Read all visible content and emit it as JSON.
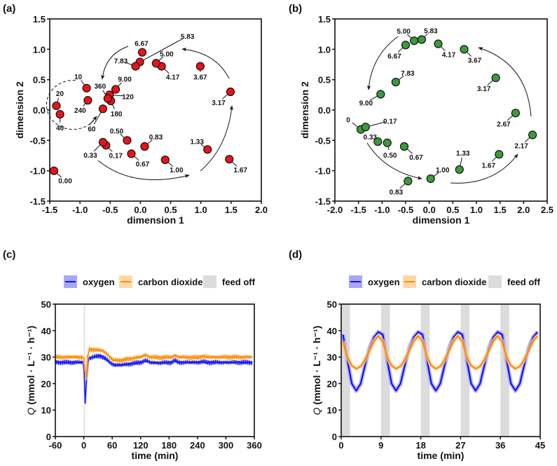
{
  "chart_data": [
    {
      "panel": "(a)",
      "type": "scatter",
      "xlabel": "dimension 1",
      "ylabel": "dimension 2",
      "xlim": [
        -1.5,
        2.0
      ],
      "ylim": [
        -1.5,
        1.5
      ],
      "xticks": [
        "-1.5",
        "-1.0",
        "-0.5",
        "0.0",
        "0.5",
        "1.0",
        "1.5",
        "2.0"
      ],
      "yticks": [
        "-1.5",
        "-1.0",
        "-0.5",
        "0.0",
        "0.5",
        "1.0",
        "1.5"
      ],
      "color": "#e8141c",
      "points": [
        {
          "label": "0.00",
          "x": -1.43,
          "y": -1.0
        },
        {
          "label": "0.17",
          "x": -0.57,
          "y": -0.58
        },
        {
          "label": "0.33",
          "x": -0.62,
          "y": -0.53
        },
        {
          "label": "0.50",
          "x": -0.22,
          "y": -0.5
        },
        {
          "label": "0.67",
          "x": -0.15,
          "y": -0.72
        },
        {
          "label": "0.83",
          "x": 0.07,
          "y": -0.6
        },
        {
          "label": "1.00",
          "x": 0.41,
          "y": -0.82
        },
        {
          "label": "1.33",
          "x": 1.11,
          "y": -0.65
        },
        {
          "label": "1.67",
          "x": 1.47,
          "y": -0.81
        },
        {
          "label": "3.17",
          "x": 1.49,
          "y": 0.3
        },
        {
          "label": "3.67",
          "x": 0.99,
          "y": 0.72
        },
        {
          "label": "4.17",
          "x": 0.35,
          "y": 0.72
        },
        {
          "label": "5.00",
          "x": 0.26,
          "y": 0.77
        },
        {
          "label": "5.83",
          "x": -0.01,
          "y": 0.79
        },
        {
          "label": "6.67",
          "x": 0.03,
          "y": 0.95
        },
        {
          "label": "7.83",
          "x": -0.08,
          "y": 0.72
        },
        {
          "label": "9.00",
          "x": -0.41,
          "y": 0.34
        },
        {
          "label": "10",
          "x": -0.89,
          "y": 0.36
        },
        {
          "label": "20",
          "x": -1.39,
          "y": 0.07
        },
        {
          "label": "40",
          "x": -1.33,
          "y": -0.07
        },
        {
          "label": "60",
          "x": -0.62,
          "y": 0.02
        },
        {
          "label": "120",
          "x": -0.51,
          "y": 0.25
        },
        {
          "label": "180",
          "x": -0.49,
          "y": 0.15
        },
        {
          "label": "240",
          "x": -0.87,
          "y": 0.16
        },
        {
          "label": "360",
          "x": -0.54,
          "y": 0.19
        }
      ]
    },
    {
      "panel": "(b)",
      "type": "scatter",
      "xlabel": "dimension 1",
      "ylabel": "dimension 2",
      "xlim": [
        -2.0,
        2.5
      ],
      "ylim": [
        -1.5,
        1.5
      ],
      "xticks": [
        "-2.0",
        "-1.5",
        "-1.0",
        "-0.5",
        "0.0",
        "0.5",
        "1.0",
        "1.5",
        "2.0",
        "2.5"
      ],
      "yticks": [
        "-1.5",
        "-1.0",
        "-0.5",
        "0.0",
        "0.5",
        "1.0",
        "1.5"
      ],
      "color": "#3c9a3c",
      "points": [
        {
          "label": "0",
          "x": -1.45,
          "y": -0.32
        },
        {
          "label": "0.17",
          "x": -1.35,
          "y": -0.28
        },
        {
          "label": "0.33",
          "x": -1.09,
          "y": -0.52
        },
        {
          "label": "0.50",
          "x": -0.89,
          "y": -0.54
        },
        {
          "label": "0.67",
          "x": -0.53,
          "y": -0.6
        },
        {
          "label": "0.83",
          "x": -0.45,
          "y": -1.17
        },
        {
          "label": "1.00",
          "x": 0.03,
          "y": -1.13
        },
        {
          "label": "1.33",
          "x": 0.64,
          "y": -0.98
        },
        {
          "label": "1.67",
          "x": 1.48,
          "y": -0.73
        },
        {
          "label": "2.17",
          "x": 2.19,
          "y": -0.41
        },
        {
          "label": "2.67",
          "x": 1.83,
          "y": -0.05
        },
        {
          "label": "3.17",
          "x": 1.41,
          "y": 0.53
        },
        {
          "label": "3.67",
          "x": 0.74,
          "y": 1.0
        },
        {
          "label": "4.17",
          "x": 0.19,
          "y": 1.09
        },
        {
          "label": "5.00",
          "x": -0.32,
          "y": 1.14
        },
        {
          "label": "5.83",
          "x": -0.16,
          "y": 1.16
        },
        {
          "label": "6.67",
          "x": -0.5,
          "y": 1.07
        },
        {
          "label": "7.83",
          "x": -0.71,
          "y": 0.46
        },
        {
          "label": "9.00",
          "x": -1.03,
          "y": 0.26
        }
      ]
    },
    {
      "panel": "(c)",
      "type": "line",
      "xlabel": "time (min)",
      "ylabel_q": "Q",
      "ylabel_units": "(mmol · L⁻¹ · h⁻¹)",
      "xlim": [
        -60,
        360
      ],
      "ylim": [
        0,
        50
      ],
      "xticks": [
        "-60",
        "0",
        "60",
        "120",
        "180",
        "240",
        "300",
        "360"
      ],
      "yticks": [
        "0",
        "10",
        "20",
        "30",
        "40",
        "50"
      ],
      "legend": [
        "oxygen",
        "carbon dioxide",
        "feed off"
      ],
      "feed_off": [
        [
          0,
          1.5
        ]
      ],
      "series": [
        {
          "name": "oxygen",
          "color": "#1414f0",
          "band": "#9a9af5",
          "x": [
            -60,
            -1,
            1,
            3,
            6,
            10,
            20,
            35,
            45,
            55,
            65,
            80,
            100,
            120,
            130,
            140,
            160,
            185,
            192,
            200,
            240,
            250,
            260,
            300,
            355
          ],
          "y": [
            28,
            28,
            24,
            13,
            22,
            29.5,
            30,
            30.5,
            29.5,
            28,
            27,
            27,
            27.5,
            28,
            28.7,
            28,
            27.8,
            28,
            28.7,
            28,
            28,
            28.3,
            28,
            28,
            28
          ]
        },
        {
          "name": "carbon dioxide",
          "color": "#ff8c00",
          "band": "#ffd29a",
          "x": [
            -60,
            -1,
            2,
            5,
            8,
            12,
            20,
            40,
            50,
            62,
            80,
            100,
            120,
            130,
            140,
            160,
            185,
            192,
            200,
            240,
            250,
            260,
            300,
            355
          ],
          "y": [
            30,
            30,
            27,
            22,
            30,
            33,
            32.8,
            32.5,
            31,
            28.8,
            28.8,
            29.5,
            30,
            30.8,
            30,
            29.8,
            30,
            30.6,
            30,
            29.8,
            30.3,
            30,
            30,
            30
          ]
        }
      ]
    },
    {
      "panel": "(d)",
      "type": "line",
      "xlabel": "time (min)",
      "ylabel_q": "Q",
      "ylabel_units": "(mmol · L⁻¹ · h⁻¹)",
      "xlim": [
        0,
        45
      ],
      "ylim": [
        0,
        50
      ],
      "xticks": [
        "0",
        "9",
        "18",
        "27",
        "36",
        "45"
      ],
      "yticks": [
        "0",
        "10",
        "20",
        "30",
        "40",
        "50"
      ],
      "legend": [
        "oxygen",
        "carbon dioxide",
        "feed off"
      ],
      "feed_off": [
        [
          0,
          2
        ],
        [
          9,
          11
        ],
        [
          18,
          20
        ],
        [
          27,
          29
        ],
        [
          36,
          38
        ]
      ],
      "cycle_offset_min": 0.4,
      "period_min": 9,
      "cycles": 5,
      "series": [
        {
          "name": "oxygen",
          "color": "#1414f0",
          "band": "#9a9af5",
          "cycle_values": [
            38.5,
            29,
            20,
            17.3,
            20,
            27,
            33.5,
            37.5,
            39.5
          ]
        },
        {
          "name": "carbon dioxide",
          "color": "#ff8c00",
          "band": "#ffd29a",
          "cycle_values": [
            36,
            30,
            26.8,
            25.6,
            26.5,
            29,
            32.5,
            36,
            38
          ]
        }
      ]
    }
  ]
}
